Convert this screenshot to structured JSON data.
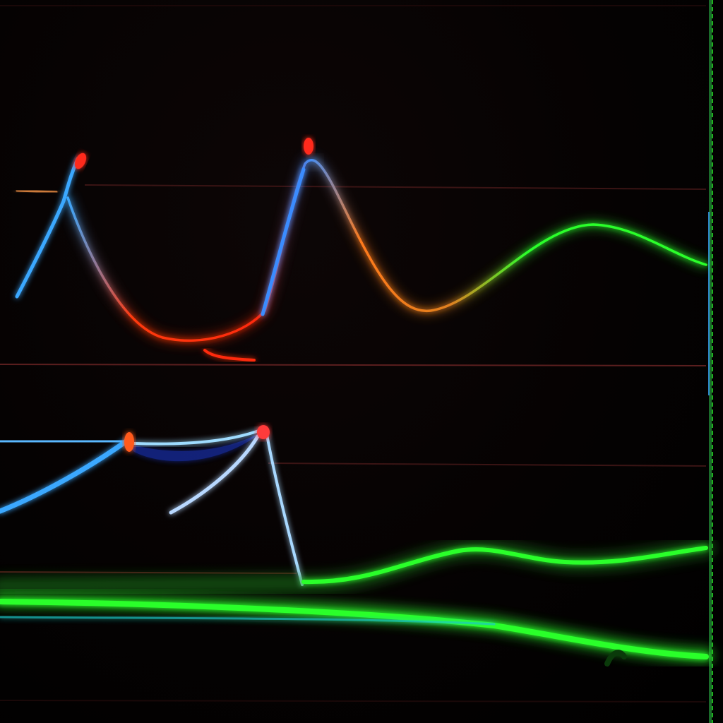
{
  "image": {
    "background": "#040202",
    "glow_colors": {
      "blue": "#3aa8ff",
      "light_blue": "#9fdcff",
      "red": "#ff2a10",
      "orange": "#ff7a1a",
      "green": "#2bff2b",
      "teal": "#1ec8c8",
      "dim_line": "#4a1616"
    }
  }
}
